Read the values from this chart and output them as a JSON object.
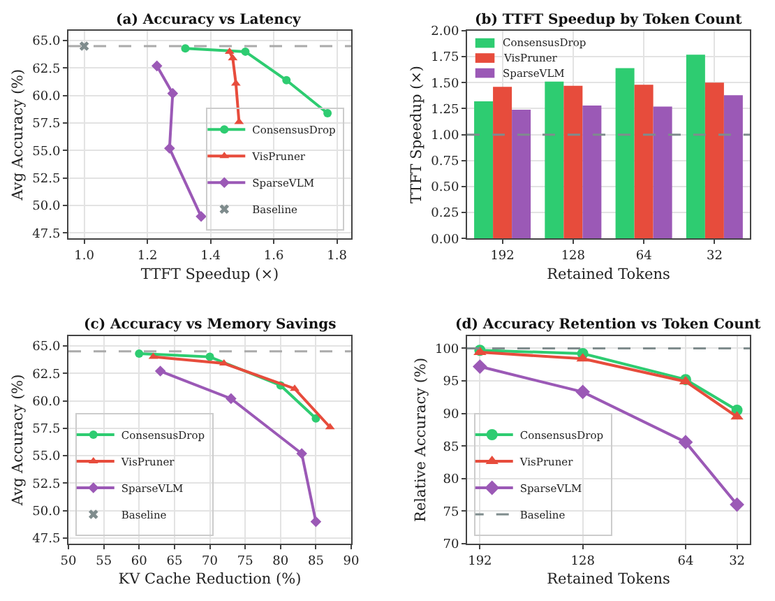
{
  "chart_data": [
    {
      "type": "line",
      "title": "(a) Accuracy vs Latency",
      "xlabel": "TTFT Speedup (×)",
      "ylabel": "Avg Accuracy (%)",
      "xlim": [
        0.95,
        1.845
      ],
      "xticks": [
        {
          "value": 1.0,
          "label": "1.0"
        },
        {
          "value": 1.2,
          "label": "1.2"
        },
        {
          "value": 1.4,
          "label": "1.4"
        },
        {
          "value": 1.6,
          "label": "1.6"
        },
        {
          "value": 1.8,
          "label": "1.8"
        }
      ],
      "ylim": [
        47,
        65.9
      ],
      "yticks": [
        {
          "value": 47.5,
          "label": "47.5"
        },
        {
          "value": 50,
          "label": "50.0"
        },
        {
          "value": 52.5,
          "label": "52.5"
        },
        {
          "value": 55,
          "label": "55.0"
        },
        {
          "value": 57.5,
          "label": "57.5"
        },
        {
          "value": 60,
          "label": "60.0"
        },
        {
          "value": 62.5,
          "label": "62.5"
        },
        {
          "value": 65,
          "label": "65.0"
        }
      ],
      "grid": true,
      "legend": "bottom right",
      "ref_lines": [
        {
          "axis": "y",
          "value": 64.5,
          "color": "#aaaaaa",
          "line_style": "dashed"
        }
      ],
      "series": [
        {
          "name": "ConsensusDrop",
          "color": "#2ecc71",
          "marker": "circle",
          "x": [
            1.32,
            1.51,
            1.64,
            1.77
          ],
          "values": [
            64.3,
            64.0,
            61.4,
            58.4
          ]
        },
        {
          "name": "VisPruner",
          "color": "#e74c3c",
          "marker": "triangle",
          "x": [
            1.46,
            1.47,
            1.48,
            1.49
          ],
          "values": [
            64.0,
            63.4,
            61.1,
            57.6
          ]
        },
        {
          "name": "SparseVLM",
          "color": "#9b59b6",
          "marker": "diamond",
          "x": [
            1.23,
            1.28,
            1.27,
            1.37
          ],
          "values": [
            62.7,
            60.2,
            55.2,
            49.0
          ]
        },
        {
          "name": "Baseline",
          "type": "scatter",
          "color": "#7f8c8d",
          "marker": "cross",
          "x": [
            1.0
          ],
          "values": [
            64.5
          ]
        }
      ]
    },
    {
      "type": "bar",
      "title": "(b) TTFT Speedup by Token Count",
      "xlabel": "Retained Tokens",
      "ylabel": "TTFT Speedup (×)",
      "categories": [
        "192",
        "128",
        "64",
        "32"
      ],
      "ylim": [
        0,
        2
      ],
      "yticks": [
        {
          "value": 0,
          "label": "0.00"
        },
        {
          "value": 0.25,
          "label": "0.25"
        },
        {
          "value": 0.5,
          "label": "0.50"
        },
        {
          "value": 0.75,
          "label": "0.75"
        },
        {
          "value": 1,
          "label": "1.00"
        },
        {
          "value": 1.25,
          "label": "1.25"
        },
        {
          "value": 1.5,
          "label": "1.50"
        },
        {
          "value": 1.75,
          "label": "1.75"
        },
        {
          "value": 2,
          "label": "2.00"
        }
      ],
      "grid": true,
      "legend": "top left",
      "ref_lines": [
        {
          "axis": "y",
          "value": 1.0,
          "color": "#7f8c8d",
          "line_style": "dashed"
        }
      ],
      "series": [
        {
          "name": "ConsensusDrop",
          "color": "#2ecc71",
          "values": [
            1.32,
            1.51,
            1.64,
            1.77
          ]
        },
        {
          "name": "VisPruner",
          "color": "#e74c3c",
          "values": [
            1.46,
            1.47,
            1.48,
            1.5
          ]
        },
        {
          "name": "SparseVLM",
          "color": "#9b59b6",
          "values": [
            1.24,
            1.28,
            1.27,
            1.38
          ]
        }
      ]
    },
    {
      "type": "line",
      "title": "(c) Accuracy vs Memory Savings",
      "xlabel": "KV Cache Reduction (%)",
      "ylabel": "Avg Accuracy (%)",
      "xlim": [
        50,
        90
      ],
      "xticks": [
        50,
        55,
        60,
        65,
        70,
        75,
        80,
        85,
        90
      ],
      "ylim": [
        47,
        65.9
      ],
      "yticks": [
        {
          "value": 47.5,
          "label": "47.5"
        },
        {
          "value": 50,
          "label": "50.0"
        },
        {
          "value": 52.5,
          "label": "52.5"
        },
        {
          "value": 55,
          "label": "55.0"
        },
        {
          "value": 57.5,
          "label": "57.5"
        },
        {
          "value": 60,
          "label": "60.0"
        },
        {
          "value": 62.5,
          "label": "62.5"
        },
        {
          "value": 65,
          "label": "65.0"
        }
      ],
      "grid": true,
      "legend": "bottom left",
      "ref_lines": [
        {
          "axis": "y",
          "value": 64.5,
          "color": "#aaaaaa",
          "line_style": "dashed"
        }
      ],
      "series": [
        {
          "name": "ConsensusDrop",
          "color": "#2ecc71",
          "marker": "circle",
          "x": [
            60,
            70,
            80,
            85
          ],
          "values": [
            64.3,
            64.0,
            61.4,
            58.4
          ]
        },
        {
          "name": "VisPruner",
          "color": "#e74c3c",
          "marker": "triangle",
          "x": [
            62,
            72,
            82,
            87
          ],
          "values": [
            64.0,
            63.4,
            61.1,
            57.6
          ]
        },
        {
          "name": "SparseVLM",
          "color": "#9b59b6",
          "marker": "diamond",
          "x": [
            63,
            73,
            83,
            85
          ],
          "values": [
            62.7,
            60.2,
            55.2,
            49.0
          ]
        },
        {
          "name": "Baseline",
          "type": "scatter",
          "color": "#7f8c8d",
          "marker": "cross",
          "x": [
            null
          ],
          "values": [
            null
          ]
        }
      ]
    },
    {
      "type": "line",
      "title": "(d) Accuracy Retention vs Token Count",
      "xlabel": "Retained Tokens",
      "ylabel": "Relative Accuracy (%)",
      "x": [
        192,
        128,
        64,
        32
      ],
      "xlim": [
        200,
        24
      ],
      "xticks": [
        192,
        128,
        64,
        32
      ],
      "ylim": [
        70,
        101.9
      ],
      "yticks": [
        70,
        75,
        80,
        85,
        90,
        95,
        100
      ],
      "grid": true,
      "legend": "bottom left",
      "ref_lines": [
        {
          "axis": "y",
          "value": 100,
          "label": "Baseline",
          "color": "#7f8c8d",
          "line_style": "dashed"
        }
      ],
      "series": [
        {
          "name": "ConsensusDrop",
          "color": "#2ecc71",
          "marker": "circle",
          "values": [
            99.7,
            99.2,
            95.2,
            90.5
          ]
        },
        {
          "name": "VisPruner",
          "color": "#e74c3c",
          "marker": "triangle",
          "values": [
            99.4,
            98.4,
            94.9,
            89.5
          ]
        },
        {
          "name": "SparseVLM",
          "color": "#9b59b6",
          "marker": "diamond",
          "values": [
            97.2,
            93.3,
            85.6,
            76.0
          ]
        }
      ]
    }
  ]
}
